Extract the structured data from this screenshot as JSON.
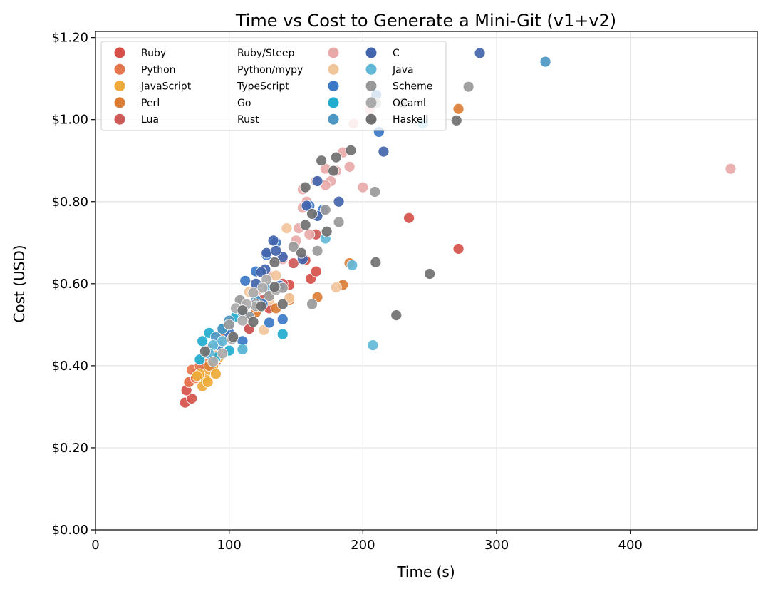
{
  "chart_data": {
    "type": "scatter",
    "title": "Time vs Cost to Generate a Mini-Git (v1+v2)",
    "xlabel": "Time (s)",
    "ylabel": "Cost (USD)",
    "xlim": [
      0,
      495
    ],
    "ylim": [
      0,
      1.215
    ],
    "xticks": [
      0,
      100,
      200,
      300,
      400
    ],
    "xtick_labels": [
      "0",
      "100",
      "200",
      "300",
      "400"
    ],
    "yticks": [
      0,
      0.2,
      0.4,
      0.6,
      0.8,
      1.0,
      1.2
    ],
    "ytick_labels": [
      "$0.00",
      "$0.20",
      "$0.40",
      "$0.60",
      "$0.80",
      "$1.00",
      "$1.20"
    ],
    "grid": true,
    "legend_position": "top-left",
    "legend_columns": 3,
    "series": [
      {
        "name": "Ruby",
        "color": "#d6504a",
        "points": [
          [
            67,
            0.31
          ],
          [
            72,
            0.32
          ],
          [
            68,
            0.34
          ],
          [
            70,
            0.36
          ],
          [
            75,
            0.38
          ],
          [
            80,
            0.4
          ],
          [
            90,
            0.41
          ],
          [
            115,
            0.49
          ],
          [
            130,
            0.54
          ],
          [
            145,
            0.565
          ],
          [
            145,
            0.597
          ],
          [
            161,
            0.612
          ],
          [
            165,
            0.63
          ],
          [
            157,
            0.657
          ],
          [
            234.5,
            0.76
          ],
          [
            271.5,
            0.685
          ]
        ]
      },
      {
        "name": "Python",
        "color": "#e5774e",
        "points": [
          [
            70,
            0.36
          ],
          [
            72,
            0.39
          ],
          [
            75,
            0.37
          ],
          [
            78,
            0.4
          ],
          [
            82,
            0.42
          ],
          [
            85,
            0.44
          ],
          [
            88,
            0.41
          ],
          [
            95,
            0.47
          ]
        ]
      },
      {
        "name": "JavaScript",
        "color": "#eeaa3a",
        "points": [
          [
            80,
            0.35
          ],
          [
            82,
            0.37
          ],
          [
            85,
            0.39
          ],
          [
            88,
            0.4
          ],
          [
            90,
            0.38
          ],
          [
            84,
            0.36
          ],
          [
            78,
            0.38
          ],
          [
            92,
            0.42
          ],
          [
            76,
            0.375
          ]
        ]
      },
      {
        "name": "Perl",
        "color": "#dc7e35",
        "points": [
          [
            85,
            0.4
          ],
          [
            90,
            0.43
          ],
          [
            120,
            0.53
          ],
          [
            135,
            0.54
          ],
          [
            145,
            0.56
          ],
          [
            166,
            0.567
          ],
          [
            185,
            0.597
          ],
          [
            190,
            0.65
          ],
          [
            271.5,
            1.026
          ],
          [
            130,
            0.58
          ]
        ]
      },
      {
        "name": "Lua",
        "color": "#cc5a58",
        "points": [
          [
            86,
            0.44
          ],
          [
            100,
            0.47
          ],
          [
            115,
            0.49
          ],
          [
            125,
            0.56
          ],
          [
            140,
            0.6
          ],
          [
            148,
            0.65
          ],
          [
            165,
            0.72
          ]
        ]
      },
      {
        "name": "Ruby/Steep",
        "color": "#e9a9a9",
        "points": [
          [
            475,
            0.88
          ],
          [
            185,
            0.92
          ],
          [
            190,
            0.885
          ],
          [
            200,
            0.835
          ],
          [
            176,
            0.85
          ],
          [
            172,
            0.84
          ],
          [
            165,
            0.85
          ],
          [
            155,
            0.83
          ],
          [
            155,
            0.785
          ],
          [
            158,
            0.8
          ],
          [
            152,
            0.735
          ],
          [
            160,
            0.72
          ],
          [
            150,
            0.705
          ],
          [
            140,
            0.66
          ],
          [
            130,
            0.62
          ],
          [
            120,
            0.58
          ],
          [
            110,
            0.55
          ],
          [
            193,
            0.99
          ],
          [
            205,
            1.025
          ],
          [
            180,
            0.875
          ],
          [
            172,
            0.88
          ]
        ]
      },
      {
        "name": "Python/mypy",
        "color": "#f2c69b",
        "points": [
          [
            143,
            0.735
          ],
          [
            180,
            0.591
          ],
          [
            145,
            0.565
          ],
          [
            126,
            0.487
          ],
          [
            135,
            0.62
          ],
          [
            115,
            0.58
          ],
          [
            130,
            0.56
          ],
          [
            100,
            0.5
          ],
          [
            92,
            0.44
          ]
        ]
      },
      {
        "name": "TypeScript",
        "color": "#3b78c6",
        "points": [
          [
            210,
            1.06
          ],
          [
            212,
            0.97
          ],
          [
            170,
            0.78
          ],
          [
            160,
            0.79
          ],
          [
            135,
            0.7
          ],
          [
            128,
            0.67
          ],
          [
            112,
            0.607
          ],
          [
            120,
            0.63
          ],
          [
            130,
            0.505
          ],
          [
            140,
            0.513
          ],
          [
            138,
            0.595
          ],
          [
            125,
            0.55
          ],
          [
            110,
            0.46
          ],
          [
            100,
            0.48
          ],
          [
            92,
            0.45
          ]
        ]
      },
      {
        "name": "Go",
        "color": "#22adcf",
        "points": [
          [
            140,
            0.477
          ],
          [
            80,
            0.46
          ],
          [
            85,
            0.48
          ],
          [
            100,
            0.437
          ],
          [
            110,
            0.44
          ],
          [
            95,
            0.49
          ],
          [
            90,
            0.42
          ],
          [
            78,
            0.415
          ],
          [
            105,
            0.52
          ]
        ]
      },
      {
        "name": "Rust",
        "color": "#4c97c3",
        "points": [
          [
            336.5,
            1.141
          ],
          [
            84,
            0.43
          ],
          [
            90,
            0.47
          ],
          [
            95,
            0.49
          ],
          [
            100,
            0.51
          ],
          [
            110,
            0.53
          ],
          [
            120,
            0.56
          ],
          [
            115,
            0.52
          ],
          [
            130,
            0.59
          ]
        ]
      },
      {
        "name": "C",
        "color": "#4265ad",
        "points": [
          [
            287.5,
            1.162
          ],
          [
            215.5,
            0.922
          ],
          [
            166,
            0.85
          ],
          [
            182,
            0.8
          ],
          [
            166,
            0.765
          ],
          [
            158,
            0.79
          ],
          [
            155,
            0.66
          ],
          [
            140,
            0.665
          ],
          [
            133,
            0.705
          ],
          [
            128,
            0.675
          ],
          [
            135,
            0.68
          ],
          [
            127,
            0.635
          ],
          [
            124,
            0.628
          ],
          [
            120,
            0.6
          ]
        ]
      },
      {
        "name": "Java",
        "color": "#63b9d8",
        "points": [
          [
            207.5,
            0.45
          ],
          [
            192,
            0.645
          ],
          [
            172,
            0.71
          ],
          [
            110,
            0.44
          ],
          [
            88,
            0.45
          ],
          [
            85,
            0.43
          ],
          [
            100,
            0.5
          ],
          [
            245,
            0.99
          ],
          [
            95,
            0.46
          ]
        ]
      },
      {
        "name": "Scheme",
        "color": "#999999",
        "points": [
          [
            279,
            1.08
          ],
          [
            209,
            0.824
          ],
          [
            182,
            0.75
          ],
          [
            172,
            0.78
          ],
          [
            166,
            0.68
          ],
          [
            162,
            0.55
          ],
          [
            120,
            0.55
          ],
          [
            108,
            0.56
          ],
          [
            100,
            0.5
          ],
          [
            115,
            0.52
          ],
          [
            130,
            0.57
          ],
          [
            140,
            0.59
          ],
          [
            148,
            0.69
          ],
          [
            230,
            1.04
          ]
        ]
      },
      {
        "name": "OCaml",
        "color": "#ababab",
        "points": [
          [
            88,
            0.41
          ],
          [
            95,
            0.43
          ],
          [
            102,
            0.465
          ],
          [
            110,
            0.51
          ],
          [
            118,
            0.578
          ],
          [
            120,
            0.545
          ],
          [
            128,
            0.61
          ],
          [
            125,
            0.59
          ],
          [
            135,
            0.585
          ],
          [
            105,
            0.54
          ],
          [
            113,
            0.55
          ],
          [
            210,
            1.04
          ]
        ]
      },
      {
        "name": "Haskell",
        "color": "#707070",
        "points": [
          [
            270,
            0.998
          ],
          [
            209.6,
            0.652
          ],
          [
            250,
            0.624
          ],
          [
            225,
            0.523
          ],
          [
            191,
            0.925
          ],
          [
            180,
            0.908
          ],
          [
            169,
            0.9
          ],
          [
            178,
            0.875
          ],
          [
            157,
            0.835
          ],
          [
            162,
            0.77
          ],
          [
            157,
            0.743
          ],
          [
            173,
            0.727
          ],
          [
            154,
            0.675
          ],
          [
            134,
            0.652
          ],
          [
            134,
            0.592
          ],
          [
            140,
            0.55
          ],
          [
            124,
            0.545
          ],
          [
            118,
            0.507
          ],
          [
            110,
            0.535
          ],
          [
            103,
            0.47
          ],
          [
            82,
            0.435
          ]
        ]
      }
    ]
  }
}
